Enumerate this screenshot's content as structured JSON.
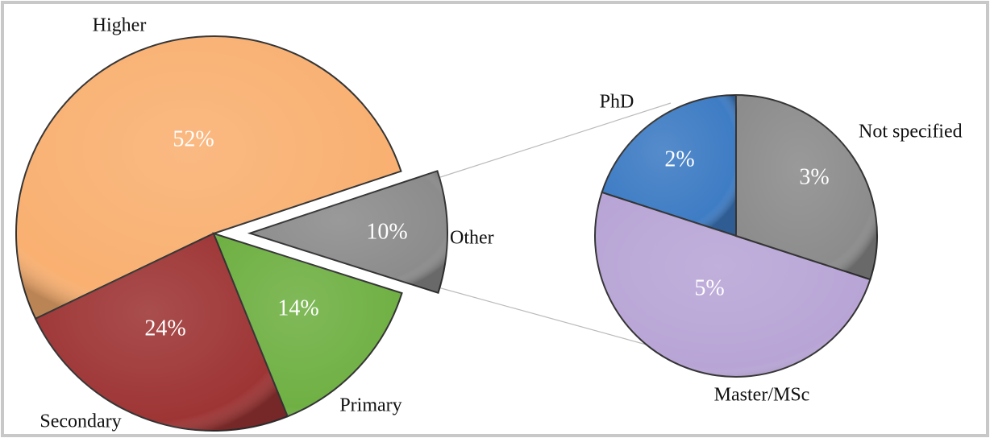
{
  "chart_data": [
    {
      "type": "pie",
      "categories": [
        "Higher",
        "Secondary",
        "Primary",
        "Other"
      ],
      "values": [
        52,
        24,
        14,
        10
      ],
      "value_labels": [
        "52%",
        "24%",
        "14%",
        "10%"
      ],
      "colors": [
        "#f9b071",
        "#9e3535",
        "#6fb043",
        "#8c8c8c"
      ]
    },
    {
      "type": "pie",
      "categories": [
        "PhD",
        "Master/MSc",
        "Not specified"
      ],
      "values": [
        2,
        5,
        3
      ],
      "value_labels": [
        "2%",
        "5%",
        "3%"
      ],
      "colors": [
        "#3e7cc4",
        "#b8a5d6",
        "#8c8c8c"
      ]
    }
  ]
}
